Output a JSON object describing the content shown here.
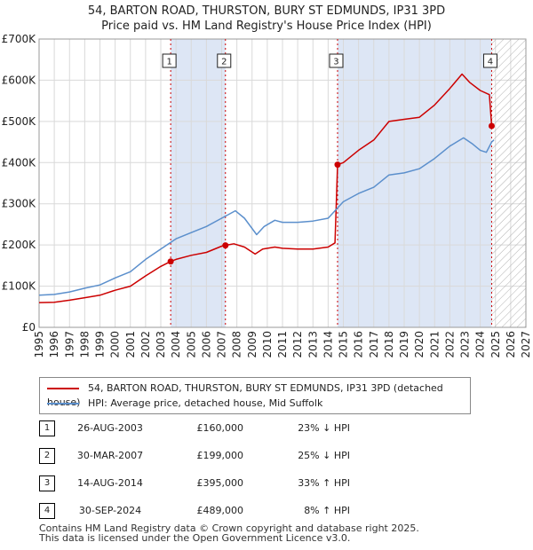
{
  "header": {
    "title_line1": "54, BARTON ROAD, THURSTON, BURY ST EDMUNDS, IP31 3PD",
    "title_line2": "Price paid vs. HM Land Registry's House Price Index (HPI)"
  },
  "colors": {
    "red": "#cc0000",
    "blue": "#5b8fcc",
    "shade": "#dde6f5",
    "grid": "#d9d9d9"
  },
  "chart_data": {
    "type": "line",
    "title": "Price paid vs. HM Land Registry's House Price Index (HPI)",
    "xlim": [
      1995,
      2027
    ],
    "ylim": [
      0,
      700000
    ],
    "x_ticks": [
      "1995",
      "1996",
      "1997",
      "1998",
      "1999",
      "2000",
      "2001",
      "2002",
      "2003",
      "2004",
      "2005",
      "2006",
      "2007",
      "2008",
      "2009",
      "2010",
      "2011",
      "2012",
      "2013",
      "2014",
      "2015",
      "2016",
      "2017",
      "2018",
      "2019",
      "2020",
      "2021",
      "2022",
      "2023",
      "2024",
      "2025",
      "2026",
      "2027"
    ],
    "y_ticks": [
      {
        "value": 0,
        "label": "£0"
      },
      {
        "value": 100000,
        "label": "£100K"
      },
      {
        "value": 200000,
        "label": "£200K"
      },
      {
        "value": 300000,
        "label": "£300K"
      },
      {
        "value": 400000,
        "label": "£400K"
      },
      {
        "value": 500000,
        "label": "£500K"
      },
      {
        "value": 600000,
        "label": "£600K"
      },
      {
        "value": 700000,
        "label": "£700K"
      }
    ],
    "grid": true,
    "shaded_regions": [
      [
        2003.65,
        2007.25
      ],
      [
        2014.62,
        2024.75
      ]
    ],
    "hatched_from": 2024.75,
    "series": [
      {
        "name": "54, BARTON ROAD, THURSTON, BURY ST EDMUNDS, IP31 3PD (detached house)",
        "color": "#cc0000",
        "points": [
          [
            1995.0,
            60000
          ],
          [
            1996.0,
            61000
          ],
          [
            1997.0,
            66000
          ],
          [
            1998.0,
            72000
          ],
          [
            1999.0,
            78000
          ],
          [
            2000.0,
            90000
          ],
          [
            2001.0,
            100000
          ],
          [
            2002.0,
            125000
          ],
          [
            2003.0,
            148000
          ],
          [
            2003.65,
            160000
          ],
          [
            2004.0,
            165000
          ],
          [
            2005.0,
            175000
          ],
          [
            2006.0,
            182000
          ],
          [
            2007.0,
            197000
          ],
          [
            2007.25,
            199000
          ],
          [
            2007.8,
            203000
          ],
          [
            2008.5,
            195000
          ],
          [
            2009.2,
            178000
          ],
          [
            2009.7,
            190000
          ],
          [
            2010.5,
            195000
          ],
          [
            2011.0,
            192000
          ],
          [
            2012.0,
            190000
          ],
          [
            2013.0,
            190000
          ],
          [
            2014.0,
            195000
          ],
          [
            2014.45,
            205000
          ],
          [
            2014.62,
            395000
          ],
          [
            2015.0,
            400000
          ],
          [
            2016.0,
            430000
          ],
          [
            2017.0,
            455000
          ],
          [
            2018.0,
            500000
          ],
          [
            2019.0,
            505000
          ],
          [
            2020.0,
            510000
          ],
          [
            2021.0,
            540000
          ],
          [
            2022.0,
            580000
          ],
          [
            2022.8,
            615000
          ],
          [
            2023.3,
            595000
          ],
          [
            2024.0,
            575000
          ],
          [
            2024.6,
            565000
          ],
          [
            2024.75,
            489000
          ]
        ]
      },
      {
        "name": "HPI: Average price, detached house, Mid Suffolk",
        "color": "#5b8fcc",
        "points": [
          [
            1995.0,
            78000
          ],
          [
            1996.0,
            80000
          ],
          [
            1997.0,
            86000
          ],
          [
            1998.0,
            95000
          ],
          [
            1999.0,
            103000
          ],
          [
            2000.0,
            120000
          ],
          [
            2001.0,
            135000
          ],
          [
            2002.0,
            165000
          ],
          [
            2003.0,
            190000
          ],
          [
            2004.0,
            215000
          ],
          [
            2005.0,
            230000
          ],
          [
            2006.0,
            245000
          ],
          [
            2007.0,
            265000
          ],
          [
            2007.9,
            283000
          ],
          [
            2008.5,
            265000
          ],
          [
            2009.3,
            225000
          ],
          [
            2009.8,
            245000
          ],
          [
            2010.5,
            260000
          ],
          [
            2011.0,
            255000
          ],
          [
            2012.0,
            255000
          ],
          [
            2013.0,
            258000
          ],
          [
            2014.0,
            265000
          ],
          [
            2014.62,
            290000
          ],
          [
            2015.0,
            305000
          ],
          [
            2016.0,
            325000
          ],
          [
            2017.0,
            340000
          ],
          [
            2018.0,
            370000
          ],
          [
            2019.0,
            375000
          ],
          [
            2020.0,
            385000
          ],
          [
            2021.0,
            410000
          ],
          [
            2022.0,
            440000
          ],
          [
            2022.9,
            460000
          ],
          [
            2023.5,
            445000
          ],
          [
            2024.0,
            430000
          ],
          [
            2024.4,
            425000
          ],
          [
            2024.75,
            450000
          ],
          [
            2024.9,
            455000
          ]
        ]
      }
    ],
    "markers": [
      {
        "id": "1",
        "x": 2003.65,
        "y": 160000
      },
      {
        "id": "2",
        "x": 2007.25,
        "y": 199000
      },
      {
        "id": "3",
        "x": 2014.62,
        "y": 395000
      },
      {
        "id": "4",
        "x": 2024.75,
        "y": 489000
      }
    ]
  },
  "legend": {
    "red_label": "54, BARTON ROAD, THURSTON, BURY ST EDMUNDS, IP31 3PD (detached house)",
    "blue_label": "HPI: Average price, detached house, Mid Suffolk"
  },
  "transactions": [
    {
      "num": "1",
      "date": "26-AUG-2003",
      "price": "£160,000",
      "hpi": "23% ↓ HPI"
    },
    {
      "num": "2",
      "date": "30-MAR-2007",
      "price": "£199,000",
      "hpi": "25% ↓ HPI"
    },
    {
      "num": "3",
      "date": "14-AUG-2014",
      "price": "£395,000",
      "hpi": "33% ↑ HPI"
    },
    {
      "num": "4",
      "date": "30-SEP-2024",
      "price": "£489,000",
      "hpi": "8% ↑ HPI"
    }
  ],
  "footer": {
    "line1": "Contains HM Land Registry data © Crown copyright and database right 2025.",
    "line2": "This data is licensed under the Open Government Licence v3.0."
  }
}
